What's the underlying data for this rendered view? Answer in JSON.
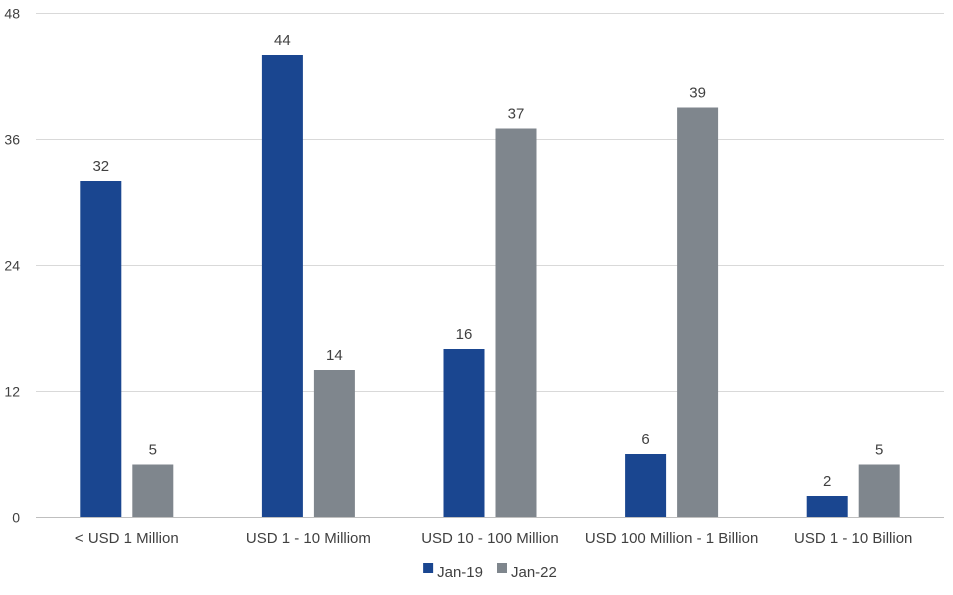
{
  "chart_data": {
    "type": "bar",
    "title": "",
    "xlabel": "",
    "ylabel": "",
    "categories": [
      "< USD 1 Million",
      "USD 1 - 10 Milliom",
      "USD 10 - 100 Million",
      "USD 100 Million - 1 Billion",
      "USD 1 - 10 Billion"
    ],
    "series": [
      {
        "name": "Jan-19",
        "color": "#1a4690",
        "values": [
          32,
          44,
          16,
          6,
          2
        ]
      },
      {
        "name": "Jan-22",
        "color": "#7f868d",
        "values": [
          5,
          14,
          37,
          39,
          5
        ]
      }
    ],
    "ylim": [
      0,
      48
    ],
    "yticks": [
      0,
      12,
      24,
      36,
      48
    ],
    "grid": true,
    "legend_position": "bottom",
    "data_labels": true
  }
}
